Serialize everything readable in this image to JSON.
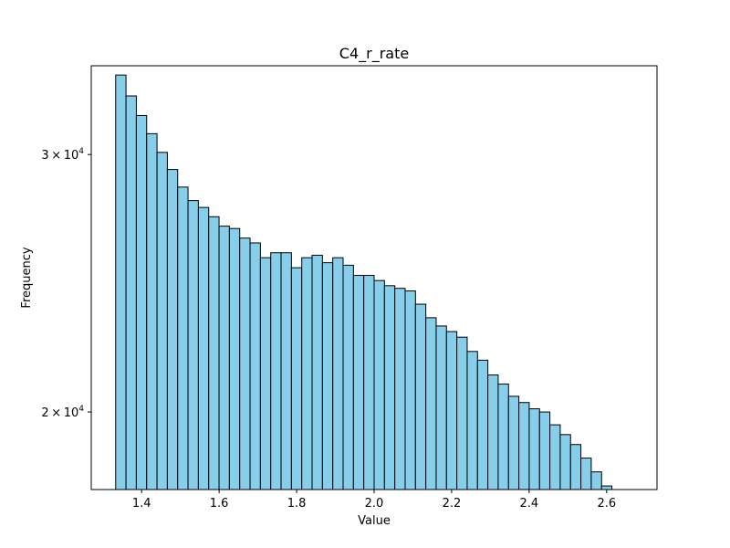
{
  "chart_data": {
    "type": "bar",
    "title": "C4_r_rate",
    "xlabel": "Value",
    "ylabel": "Frequency",
    "y_scale": "log",
    "xlim": [
      1.27,
      2.73
    ],
    "ylim": [
      17700,
      34500
    ],
    "bar_color": "#87ceeb",
    "edge_color": "#000000",
    "x_ticks": [
      {
        "value": 1.4,
        "label": "1.4"
      },
      {
        "value": 1.6,
        "label": "1.6"
      },
      {
        "value": 1.8,
        "label": "1.8"
      },
      {
        "value": 2.0,
        "label": "2.0"
      },
      {
        "value": 2.2,
        "label": "2.2"
      },
      {
        "value": 2.4,
        "label": "2.4"
      },
      {
        "value": 2.6,
        "label": "2.6"
      }
    ],
    "y_ticks": [
      {
        "value": 20000,
        "mantissa": "2",
        "times": "×",
        "base": "10",
        "exponent": "4"
      },
      {
        "value": 30000,
        "mantissa": "3",
        "times": "×",
        "base": "10",
        "exponent": "4"
      }
    ],
    "bin_start": 1.333,
    "bin_end": 2.667,
    "values": [
      34000,
      32900,
      31900,
      31000,
      30100,
      29300,
      28500,
      27900,
      27600,
      27200,
      26800,
      26700,
      26300,
      26100,
      25500,
      25700,
      25700,
      25100,
      25500,
      25600,
      25300,
      25500,
      25200,
      24800,
      24800,
      24600,
      24400,
      24300,
      24200,
      23700,
      23200,
      22900,
      22700,
      22500,
      22000,
      21700,
      21200,
      20900,
      20500,
      20300,
      20100,
      20000,
      19600,
      19300,
      19000,
      18600,
      18200,
      17800,
      17200,
      16800
    ]
  }
}
